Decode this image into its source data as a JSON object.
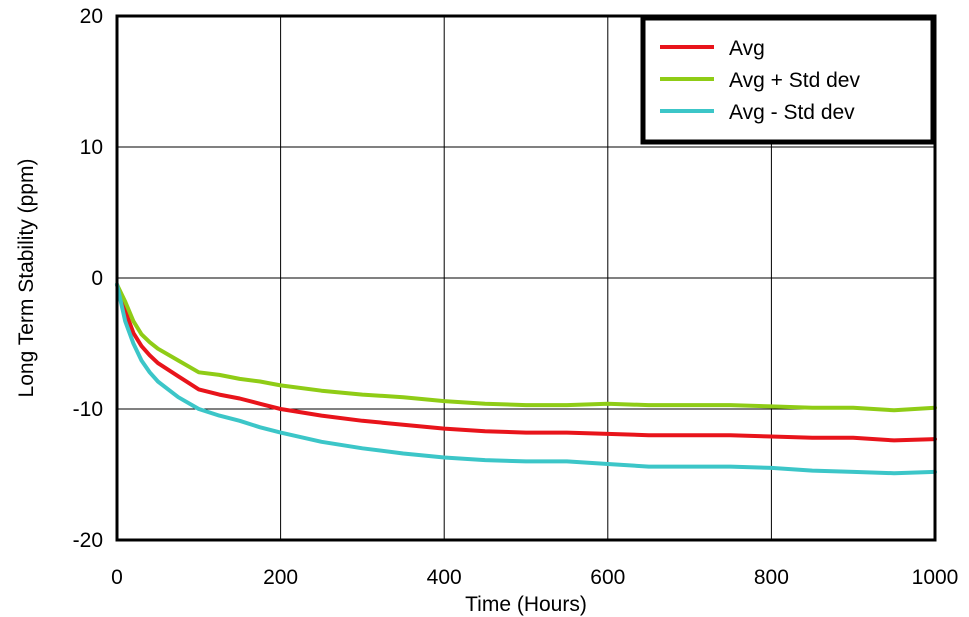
{
  "chart_data": {
    "type": "line",
    "xlabel": "Time (Hours)",
    "ylabel": "Long Term Stability (ppm)",
    "xlim": [
      0,
      1000
    ],
    "ylim": [
      -20,
      20
    ],
    "x_ticks": [
      "0",
      "200",
      "400",
      "600",
      "800",
      "1000"
    ],
    "y_ticks": [
      "20",
      "10",
      "0",
      "-10",
      "-20"
    ],
    "grid": true,
    "legend_position": "top-right",
    "series": [
      {
        "name": "Avg",
        "color": "#e8141b",
        "x": [
          0,
          10,
          20,
          30,
          40,
          50,
          75,
          100,
          125,
          150,
          175,
          200,
          250,
          300,
          350,
          400,
          450,
          500,
          550,
          600,
          650,
          700,
          750,
          800,
          850,
          900,
          950,
          1000
        ],
        "y": [
          -0.5,
          -2.5,
          -4.2,
          -5.2,
          -5.9,
          -6.5,
          -7.5,
          -8.5,
          -8.9,
          -9.2,
          -9.6,
          -10.0,
          -10.5,
          -10.9,
          -11.2,
          -11.5,
          -11.7,
          -11.8,
          -11.8,
          -11.9,
          -12.0,
          -12.0,
          -12.0,
          -12.1,
          -12.2,
          -12.2,
          -12.4,
          -12.3
        ]
      },
      {
        "name": "Avg + Std dev",
        "color": "#8fcc16",
        "x": [
          0,
          10,
          20,
          30,
          40,
          50,
          75,
          100,
          125,
          150,
          175,
          200,
          250,
          300,
          350,
          400,
          450,
          500,
          550,
          600,
          650,
          700,
          750,
          800,
          850,
          900,
          950,
          1000
        ],
        "y": [
          -0.5,
          -1.8,
          -3.3,
          -4.3,
          -4.9,
          -5.4,
          -6.3,
          -7.2,
          -7.4,
          -7.7,
          -7.9,
          -8.2,
          -8.6,
          -8.9,
          -9.1,
          -9.4,
          -9.6,
          -9.7,
          -9.7,
          -9.6,
          -9.7,
          -9.7,
          -9.7,
          -9.8,
          -9.9,
          -9.9,
          -10.1,
          -9.9
        ]
      },
      {
        "name": "Avg - Std dev",
        "color": "#3cc6c8",
        "x": [
          0,
          10,
          20,
          30,
          40,
          50,
          75,
          100,
          125,
          150,
          175,
          200,
          250,
          300,
          350,
          400,
          450,
          500,
          550,
          600,
          650,
          700,
          750,
          800,
          850,
          900,
          950,
          1000
        ],
        "y": [
          -0.5,
          -3.3,
          -5.0,
          -6.3,
          -7.2,
          -7.9,
          -9.1,
          -10.0,
          -10.5,
          -10.9,
          -11.4,
          -11.8,
          -12.5,
          -13.0,
          -13.4,
          -13.7,
          -13.9,
          -14.0,
          -14.0,
          -14.2,
          -14.4,
          -14.4,
          -14.4,
          -14.5,
          -14.7,
          -14.8,
          -14.9,
          -14.8
        ]
      }
    ]
  }
}
